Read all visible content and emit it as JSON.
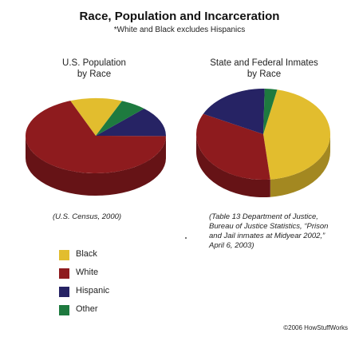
{
  "header": {
    "title": "Race, Population and Incarceration",
    "subtitle": "*White and Black excludes Hispanics"
  },
  "copyright": "©2006 HowStuffWorks",
  "legend": [
    {
      "label": "Black",
      "color": "#E2BD2E"
    },
    {
      "label": "White",
      "color": "#8E1B1E"
    },
    {
      "label": "Hispanic",
      "color": "#262364"
    },
    {
      "label": "Other",
      "color": "#1E7A3F"
    }
  ],
  "chart_data": [
    {
      "type": "pie",
      "title": "U.S. Population by Race",
      "title_lines": [
        "U.S. Population",
        "by Race"
      ],
      "source_lines": [
        "(U.S. Census, 2000)"
      ],
      "style": "3d",
      "categories": [
        "Black",
        "White",
        "Hispanic",
        "Other"
      ],
      "values": [
        12,
        69,
        13,
        6
      ]
    },
    {
      "type": "pie",
      "title": "State and Federal Inmates by Race",
      "title_lines": [
        "State and Federal Inmates",
        "by Race"
      ],
      "source_lines": [
        "(Table 13 Department of Justice,",
        "Bureau of Justice Statistics, “Prison",
        "and Jail inmates at Midyear 2002,”",
        "April 6, 2003)"
      ],
      "style": "3d",
      "categories": [
        "Black",
        "White",
        "Hispanic",
        "Other"
      ],
      "values": [
        45,
        34,
        18,
        3
      ]
    }
  ]
}
